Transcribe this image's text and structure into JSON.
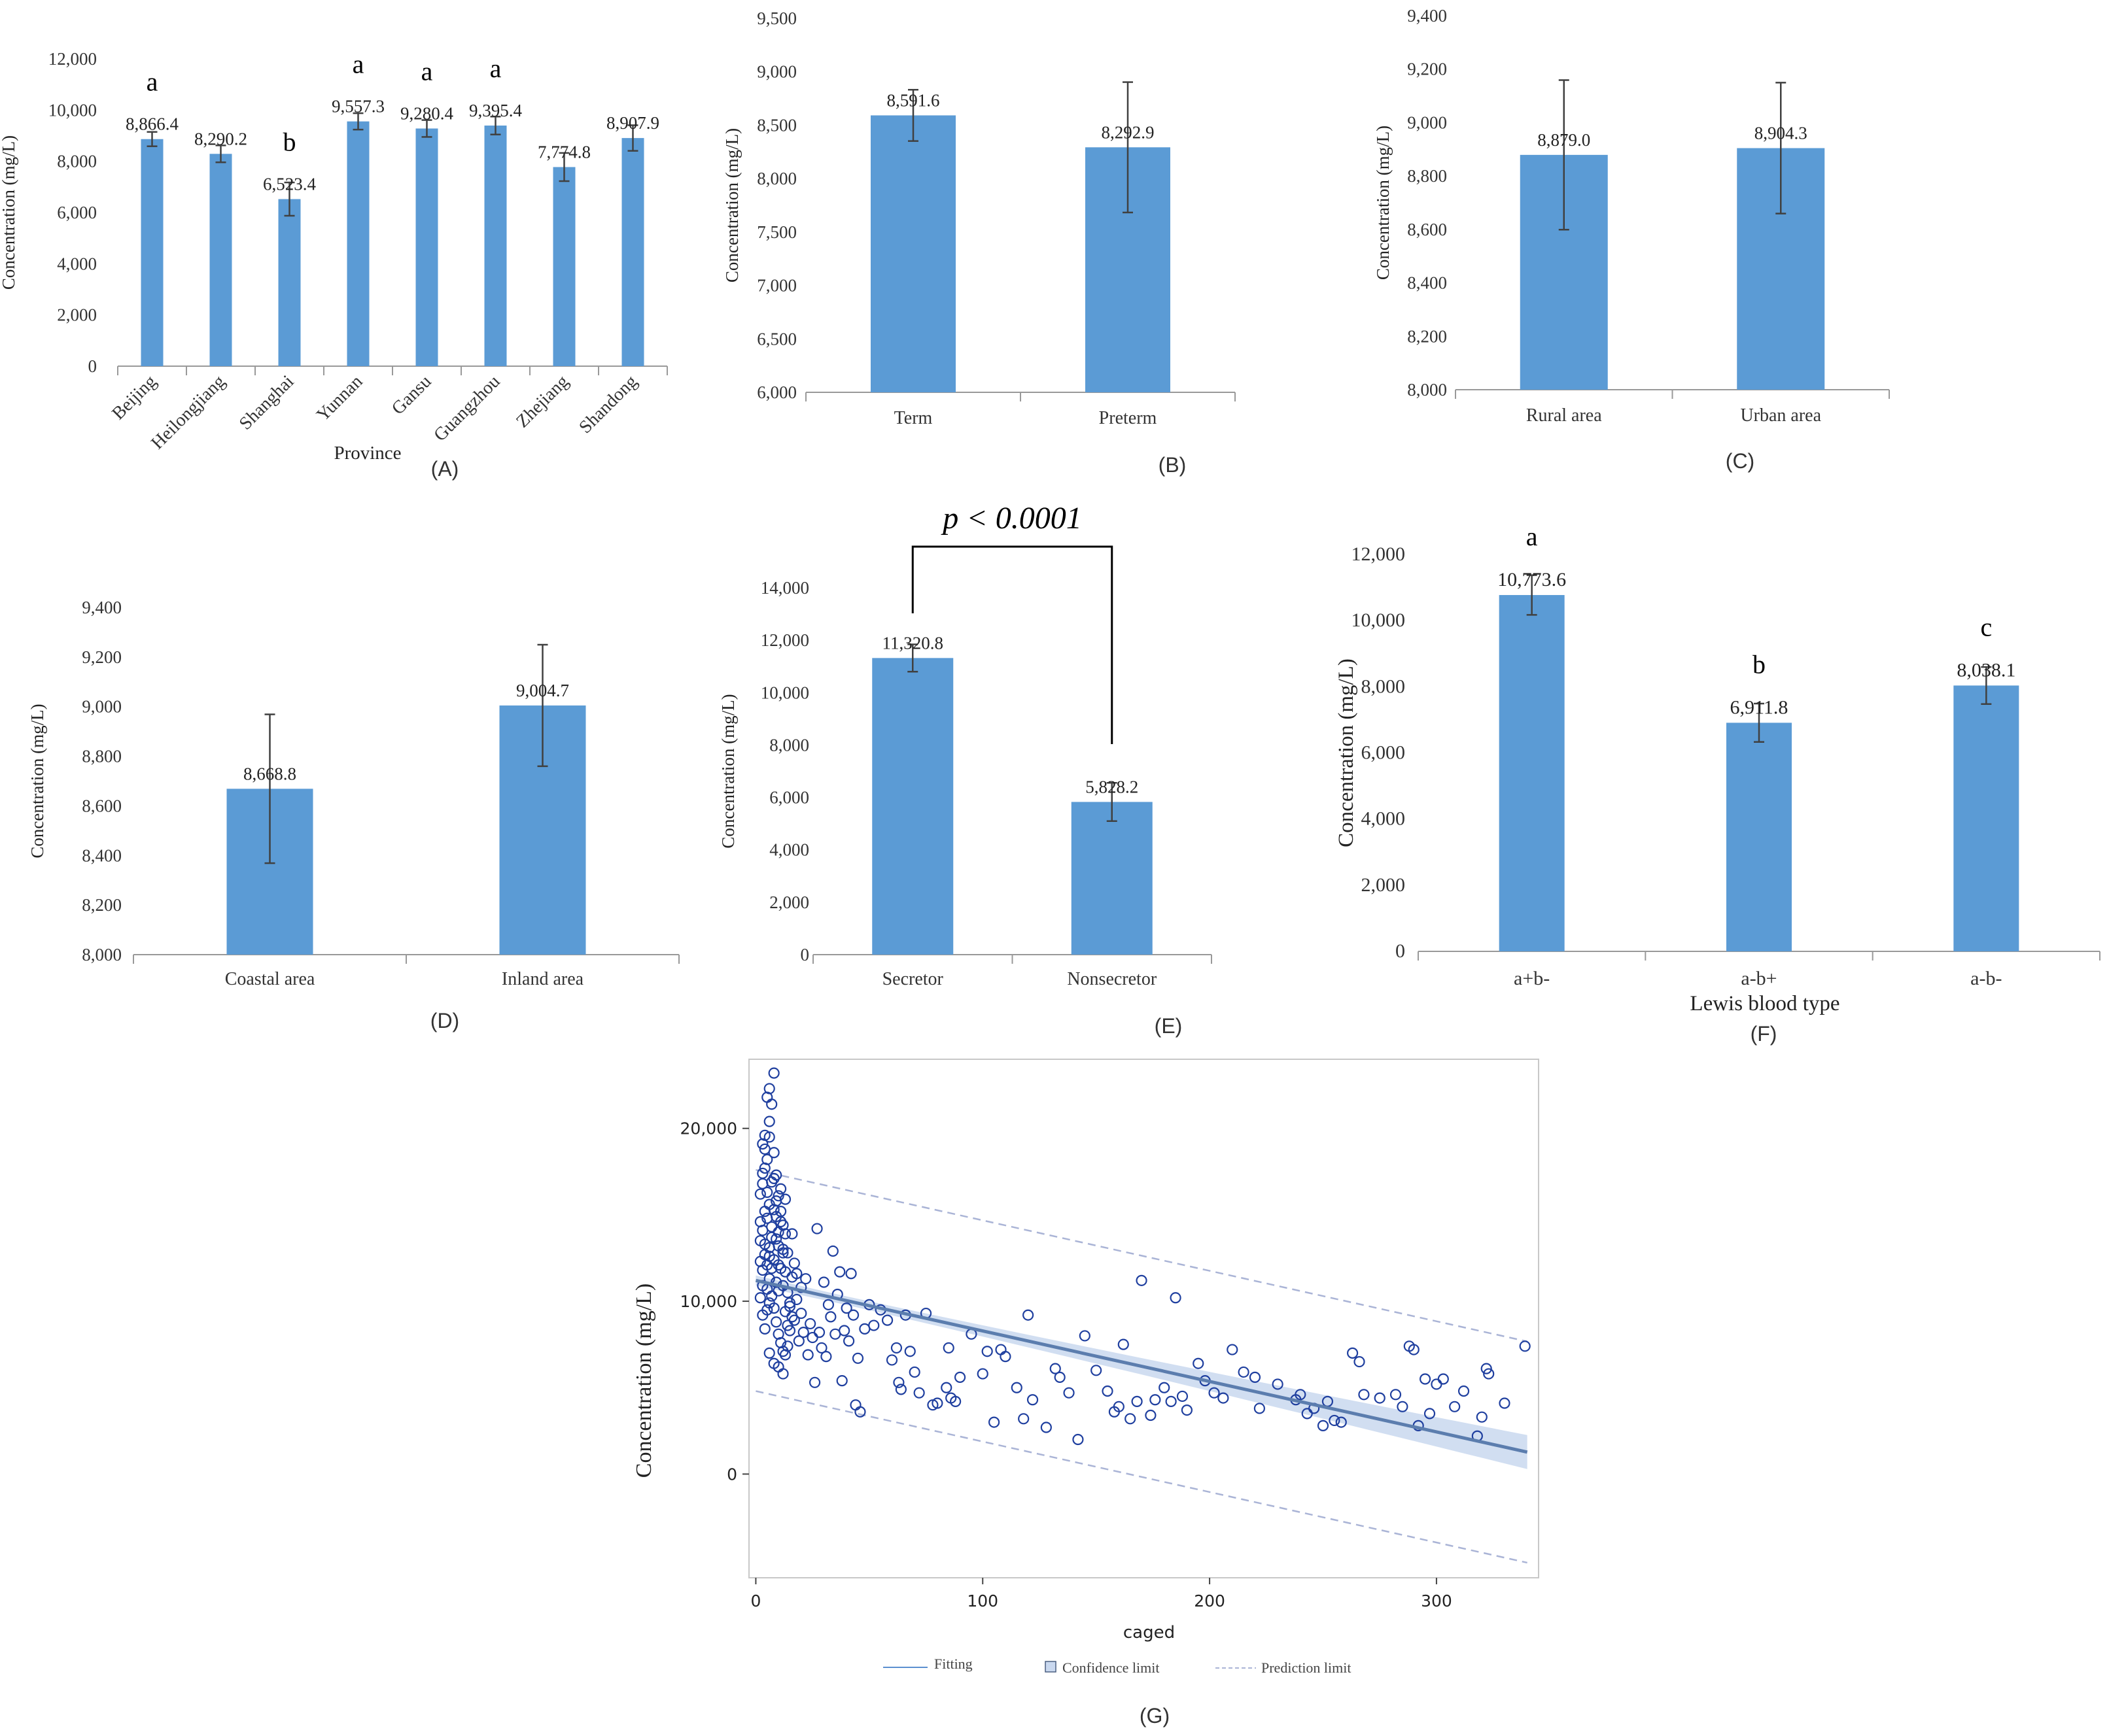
{
  "colors": {
    "bar": "#5b9bd5",
    "error": "#404040",
    "axis": "#999999",
    "point": "#1f3f9f",
    "fit": "#5b7dae",
    "band": "#c9d8ef",
    "prediction": "#aab4d6"
  },
  "chart_data": [
    {
      "id": "A",
      "type": "bar",
      "panel_label": "(A)",
      "xlabel": "Province",
      "ylabel": "Concentration (mg/L)",
      "ylim": [
        0,
        12000
      ],
      "yticks": [
        0,
        2000,
        4000,
        6000,
        8000,
        10000,
        12000
      ],
      "ytick_labels": [
        "0",
        "2,000",
        "4,000",
        "6,000",
        "8,000",
        "10,000",
        "12,000"
      ],
      "categories": [
        "Beijing",
        "Heilongjiang",
        "Shanghai",
        "Yunnan",
        "Gansu",
        "Guangzhou",
        "Zhejiang",
        "Shandong"
      ],
      "values": [
        8866.4,
        8290.2,
        6523.4,
        9557.3,
        9280.4,
        9395.4,
        7774.8,
        8907.9
      ],
      "value_labels": [
        "8,866.4",
        "8,290.2",
        "6,523.4",
        "9,557.3",
        "9,280.4",
        "9,395.4",
        "7,774.8",
        "8,907.9"
      ],
      "errors": [
        280,
        330,
        650,
        320,
        330,
        350,
        550,
        500
      ],
      "letters": [
        "a",
        "",
        "b",
        "a",
        "a",
        "a",
        "",
        ""
      ]
    },
    {
      "id": "B",
      "type": "bar",
      "panel_label": "(B)",
      "xlabel": "",
      "ylabel": "Concentration (mg/L)",
      "ylim": [
        6000,
        9500
      ],
      "yticks": [
        6000,
        6500,
        7000,
        7500,
        8000,
        8500,
        9000,
        9500
      ],
      "ytick_labels": [
        "6,000",
        "6,500",
        "7,000",
        "7,500",
        "8,000",
        "8,500",
        "9,000",
        "9,500"
      ],
      "categories": [
        "Term",
        "Preterm"
      ],
      "values": [
        8591.6,
        8292.9
      ],
      "value_labels": [
        "8,591.6",
        "8,292.9"
      ],
      "errors": [
        240,
        610
      ],
      "letters": [
        "",
        ""
      ]
    },
    {
      "id": "C",
      "type": "bar",
      "panel_label": "(C)",
      "xlabel": "",
      "ylabel": "Concentration (mg/L)",
      "ylim": [
        8000,
        9400
      ],
      "yticks": [
        8000,
        8200,
        8400,
        8600,
        8800,
        9000,
        9200,
        9400
      ],
      "ytick_labels": [
        "8,000",
        "8,200",
        "8,400",
        "8,600",
        "8,800",
        "9,000",
        "9,200",
        "9,400"
      ],
      "categories": [
        "Rural area",
        "Urban area"
      ],
      "values": [
        8879.0,
        8904.3
      ],
      "value_labels": [
        "8,879.0",
        "8,904.3"
      ],
      "errors": [
        280,
        245
      ],
      "letters": [
        "",
        ""
      ]
    },
    {
      "id": "D",
      "type": "bar",
      "panel_label": "(D)",
      "xlabel": "",
      "ylabel": "Concentration (mg/L)",
      "ylim": [
        8000,
        9400
      ],
      "yticks": [
        8000,
        8200,
        8400,
        8600,
        8800,
        9000,
        9200,
        9400
      ],
      "ytick_labels": [
        "8,000",
        "8,200",
        "8,400",
        "8,600",
        "8,800",
        "9,000",
        "9,200",
        "9,400"
      ],
      "categories": [
        "Coastal area",
        "Inland area"
      ],
      "values": [
        8668.8,
        9004.7
      ],
      "value_labels": [
        "8,668.8",
        "9,004.7"
      ],
      "errors": [
        300,
        245
      ],
      "letters": [
        "",
        ""
      ]
    },
    {
      "id": "E",
      "type": "bar",
      "panel_label": "(E)",
      "xlabel": "",
      "ylabel": "Concentration (mg/L)",
      "ylim": [
        0,
        14000
      ],
      "yticks": [
        0,
        2000,
        4000,
        6000,
        8000,
        10000,
        12000,
        14000
      ],
      "ytick_labels": [
        "0",
        "2,000",
        "4,000",
        "6,000",
        "8,000",
        "10,000",
        "12,000",
        "14,000"
      ],
      "categories": [
        "Secretor",
        "Nonsecretor"
      ],
      "values": [
        11320.8,
        5828.2
      ],
      "value_labels": [
        "11,320.8",
        "5,828.2"
      ],
      "errors": [
        520,
        730
      ],
      "letters": [
        "",
        ""
      ],
      "annotation": "p < 0.0001"
    },
    {
      "id": "F",
      "type": "bar",
      "panel_label": "(F)",
      "xlabel": "Lewis blood type",
      "ylabel": "Concentration (mg/L)",
      "ylim": [
        0,
        12000
      ],
      "yticks": [
        0,
        2000,
        4000,
        6000,
        8000,
        10000,
        12000
      ],
      "ytick_labels": [
        "0",
        "2,000",
        "4,000",
        "6,000",
        "8,000",
        "10,000",
        "12,000"
      ],
      "categories": [
        "a+b-",
        "a-b+",
        "a-b-"
      ],
      "values": [
        10773.6,
        6911.8,
        8038.1
      ],
      "value_labels": [
        "10,773.6",
        "6,911.8",
        "8,038.1"
      ],
      "errors": [
        600,
        580,
        560
      ],
      "letters": [
        "a",
        "b",
        "c"
      ]
    },
    {
      "id": "G",
      "type": "scatter",
      "panel_label": "(G)",
      "xlabel": "caged",
      "ylabel": "Concentration (mg/L)",
      "xlim": [
        -3,
        345
      ],
      "ylim": [
        -6000,
        24000
      ],
      "xticks": [
        0,
        100,
        200,
        300
      ],
      "yticks": [
        0,
        10000,
        20000
      ],
      "ytick_labels": [
        "0",
        "10,000",
        "20,000"
      ],
      "fit": {
        "intercept": 11200,
        "slope": -29.2
      },
      "confidence_halfwidth": {
        "at_center": 250,
        "at_ends": 1000,
        "center_x": 40
      },
      "prediction_halfwidth": 6400,
      "legend": [
        "Fitting",
        "Confidence limit",
        "Prediction limit"
      ],
      "points": [
        [
          2,
          10200
        ],
        [
          3,
          11800
        ],
        [
          2,
          13500
        ],
        [
          4,
          15200
        ],
        [
          3,
          16800
        ],
        [
          5,
          18200
        ],
        [
          4,
          19600
        ],
        [
          6,
          20400
        ],
        [
          5,
          21800
        ],
        [
          6,
          22300
        ],
        [
          7,
          21400
        ],
        [
          8,
          23200
        ],
        [
          3,
          9200
        ],
        [
          4,
          8400
        ],
        [
          6,
          12600
        ],
        [
          7,
          14300
        ],
        [
          8,
          17100
        ],
        [
          9,
          15800
        ],
        [
          10,
          13200
        ],
        [
          11,
          11900
        ],
        [
          2,
          12300
        ],
        [
          3,
          14100
        ],
        [
          4,
          13300
        ],
        [
          5,
          12100
        ],
        [
          6,
          11300
        ],
        [
          7,
          10300
        ],
        [
          8,
          9600
        ],
        [
          9,
          8800
        ],
        [
          10,
          8100
        ],
        [
          11,
          7600
        ],
        [
          12,
          7100
        ],
        [
          13,
          6900
        ],
        [
          14,
          7400
        ],
        [
          15,
          8300
        ],
        [
          16,
          9100
        ],
        [
          5,
          10700
        ],
        [
          6,
          9900
        ],
        [
          7,
          13700
        ],
        [
          8,
          12400
        ],
        [
          9,
          11100
        ],
        [
          10,
          10600
        ],
        [
          11,
          14600
        ],
        [
          12,
          12800
        ],
        [
          13,
          11700
        ],
        [
          14,
          10500
        ],
        [
          15,
          9700
        ],
        [
          16,
          11400
        ],
        [
          17,
          12200
        ],
        [
          18,
          10100
        ],
        [
          20,
          9300
        ],
        [
          4,
          17700
        ],
        [
          5,
          16300
        ],
        [
          6,
          15600
        ],
        [
          7,
          16900
        ],
        [
          8,
          18600
        ],
        [
          9,
          17300
        ],
        [
          10,
          16100
        ],
        [
          11,
          15200
        ],
        [
          12,
          14400
        ],
        [
          13,
          15900
        ],
        [
          3,
          19100
        ],
        [
          4,
          18800
        ],
        [
          6,
          19500
        ],
        [
          2,
          16200
        ],
        [
          3,
          17400
        ],
        [
          5,
          14800
        ],
        [
          9,
          13600
        ],
        [
          10,
          12100
        ],
        [
          12,
          10900
        ],
        [
          14,
          12800
        ],
        [
          16,
          13900
        ],
        [
          18,
          11600
        ],
        [
          20,
          10800
        ],
        [
          22,
          11300
        ],
        [
          24,
          8700
        ],
        [
          25,
          7900
        ],
        [
          27,
          14200
        ],
        [
          28,
          8200
        ],
        [
          30,
          11100
        ],
        [
          32,
          9800
        ],
        [
          34,
          12900
        ],
        [
          35,
          8100
        ],
        [
          37,
          11700
        ],
        [
          38,
          5400
        ],
        [
          40,
          9600
        ],
        [
          42,
          11600
        ],
        [
          44,
          4000
        ],
        [
          46,
          3600
        ],
        [
          48,
          8400
        ],
        [
          50,
          9800
        ],
        [
          52,
          8600
        ],
        [
          55,
          9500
        ],
        [
          58,
          8900
        ],
        [
          60,
          6600
        ],
        [
          62,
          7300
        ],
        [
          63,
          5300
        ],
        [
          64,
          4900
        ],
        [
          66,
          9200
        ],
        [
          68,
          7100
        ],
        [
          70,
          5900
        ],
        [
          72,
          4700
        ],
        [
          75,
          9300
        ],
        [
          78,
          4000
        ],
        [
          80,
          4100
        ],
        [
          84,
          5000
        ],
        [
          85,
          7300
        ],
        [
          86,
          4400
        ],
        [
          88,
          4200
        ],
        [
          90,
          5600
        ],
        [
          95,
          8100
        ],
        [
          100,
          5800
        ],
        [
          102,
          7100
        ],
        [
          105,
          3000
        ],
        [
          108,
          7200
        ],
        [
          110,
          6800
        ],
        [
          115,
          5000
        ],
        [
          118,
          3200
        ],
        [
          120,
          9200
        ],
        [
          122,
          4300
        ],
        [
          128,
          2700
        ],
        [
          132,
          6100
        ],
        [
          134,
          5600
        ],
        [
          138,
          4700
        ],
        [
          142,
          2000
        ],
        [
          145,
          8000
        ],
        [
          150,
          6000
        ],
        [
          155,
          4800
        ],
        [
          158,
          3600
        ],
        [
          160,
          3900
        ],
        [
          162,
          7500
        ],
        [
          165,
          3200
        ],
        [
          168,
          4200
        ],
        [
          170,
          11200
        ],
        [
          174,
          3400
        ],
        [
          176,
          4300
        ],
        [
          180,
          5000
        ],
        [
          183,
          4200
        ],
        [
          185,
          10200
        ],
        [
          188,
          4500
        ],
        [
          190,
          3700
        ],
        [
          195,
          6400
        ],
        [
          198,
          5400
        ],
        [
          202,
          4700
        ],
        [
          206,
          4400
        ],
        [
          210,
          7200
        ],
        [
          215,
          5900
        ],
        [
          220,
          5600
        ],
        [
          222,
          3800
        ],
        [
          230,
          5200
        ],
        [
          238,
          4300
        ],
        [
          240,
          4600
        ],
        [
          243,
          3500
        ],
        [
          246,
          3800
        ],
        [
          250,
          2800
        ],
        [
          252,
          4200
        ],
        [
          255,
          3100
        ],
        [
          258,
          3000
        ],
        [
          263,
          7000
        ],
        [
          266,
          6500
        ],
        [
          268,
          4600
        ],
        [
          275,
          4400
        ],
        [
          282,
          4600
        ],
        [
          285,
          3900
        ],
        [
          288,
          7400
        ],
        [
          290,
          7200
        ],
        [
          292,
          2800
        ],
        [
          295,
          5500
        ],
        [
          297,
          3500
        ],
        [
          300,
          5200
        ],
        [
          303,
          5500
        ],
        [
          308,
          3900
        ],
        [
          312,
          4800
        ],
        [
          318,
          2200
        ],
        [
          320,
          3300
        ],
        [
          322,
          6100
        ],
        [
          323,
          5800
        ],
        [
          330,
          4100
        ],
        [
          339,
          7400
        ],
        [
          10,
          6200
        ],
        [
          12,
          5800
        ],
        [
          14,
          8600
        ],
        [
          6,
          7000
        ],
        [
          8,
          6400
        ],
        [
          13,
          9400
        ],
        [
          15,
          9900
        ],
        [
          17,
          8900
        ],
        [
          19,
          7700
        ],
        [
          21,
          8200
        ],
        [
          23,
          6900
        ],
        [
          26,
          5300
        ],
        [
          29,
          7300
        ],
        [
          31,
          6800
        ],
        [
          33,
          9100
        ],
        [
          36,
          10400
        ],
        [
          39,
          8300
        ],
        [
          41,
          7700
        ],
        [
          43,
          9200
        ],
        [
          45,
          6700
        ],
        [
          9,
          14900
        ],
        [
          11,
          16500
        ],
        [
          13,
          13900
        ],
        [
          7,
          11900
        ],
        [
          5,
          9500
        ],
        [
          3,
          10900
        ],
        [
          2,
          14600
        ],
        [
          4,
          12700
        ],
        [
          6,
          13100
        ],
        [
          8,
          15300
        ],
        [
          10,
          14000
        ],
        [
          12,
          13000
        ]
      ]
    }
  ]
}
